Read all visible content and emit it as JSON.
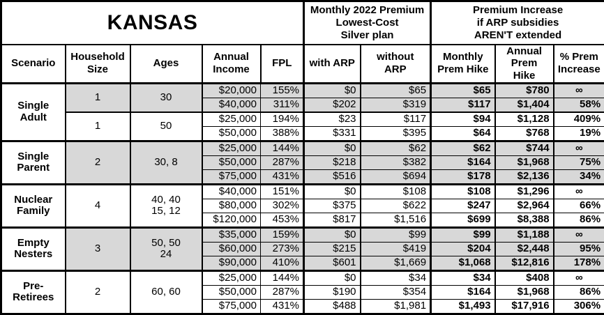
{
  "colors": {
    "shaded_row": "#d8d8d8",
    "border": "#000000",
    "background": "#ffffff"
  },
  "chart_data": {
    "type": "table",
    "title": "KANSAS",
    "column_groups": [
      "Monthly 2022 Premium\nLowest-Cost\nSilver plan",
      "Premium Increase\nif ARP subsidies\nAREN'T extended"
    ],
    "columns": [
      "Scenario",
      "Household\nSize",
      "Ages",
      "Annual\nIncome",
      "FPL",
      "with ARP",
      "without ARP",
      "Monthly\nPrem Hike",
      "Annual\nPrem Hike",
      "% Prem\nIncrease"
    ],
    "groups": [
      {
        "scenario": "Single\nAdult",
        "subgroups": [
          {
            "household_size": "1",
            "ages": "30",
            "shaded": true,
            "rows": [
              [
                "$20,000",
                "155%",
                "$0",
                "$65",
                "$65",
                "$780",
                "∞"
              ],
              [
                "$40,000",
                "311%",
                "$202",
                "$319",
                "$117",
                "$1,404",
                "58%"
              ]
            ]
          },
          {
            "household_size": "1",
            "ages": "50",
            "shaded": false,
            "rows": [
              [
                "$25,000",
                "194%",
                "$23",
                "$117",
                "$94",
                "$1,128",
                "409%"
              ],
              [
                "$50,000",
                "388%",
                "$331",
                "$395",
                "$64",
                "$768",
                "19%"
              ]
            ]
          }
        ]
      },
      {
        "scenario": "Single\nParent",
        "subgroups": [
          {
            "household_size": "2",
            "ages": "30, 8",
            "shaded": true,
            "rows": [
              [
                "$25,000",
                "144%",
                "$0",
                "$62",
                "$62",
                "$744",
                "∞"
              ],
              [
                "$50,000",
                "287%",
                "$218",
                "$382",
                "$164",
                "$1,968",
                "75%"
              ],
              [
                "$75,000",
                "431%",
                "$516",
                "$694",
                "$178",
                "$2,136",
                "34%"
              ]
            ]
          }
        ]
      },
      {
        "scenario": "Nuclear\nFamily",
        "subgroups": [
          {
            "household_size": "4",
            "ages": "40, 40\n15, 12",
            "shaded": false,
            "rows": [
              [
                "$40,000",
                "151%",
                "$0",
                "$108",
                "$108",
                "$1,296",
                "∞"
              ],
              [
                "$80,000",
                "302%",
                "$375",
                "$622",
                "$247",
                "$2,964",
                "66%"
              ],
              [
                "$120,000",
                "453%",
                "$817",
                "$1,516",
                "$699",
                "$8,388",
                "86%"
              ]
            ]
          }
        ]
      },
      {
        "scenario": "Empty\nNesters",
        "subgroups": [
          {
            "household_size": "3",
            "ages": "50, 50\n24",
            "shaded": true,
            "rows": [
              [
                "$35,000",
                "159%",
                "$0",
                "$99",
                "$99",
                "$1,188",
                "∞"
              ],
              [
                "$60,000",
                "273%",
                "$215",
                "$419",
                "$204",
                "$2,448",
                "95%"
              ],
              [
                "$90,000",
                "410%",
                "$601",
                "$1,669",
                "$1,068",
                "$12,816",
                "178%"
              ]
            ]
          }
        ]
      },
      {
        "scenario": "Pre-\nRetirees",
        "subgroups": [
          {
            "household_size": "2",
            "ages": "60, 60",
            "shaded": false,
            "rows": [
              [
                "$25,000",
                "144%",
                "$0",
                "$34",
                "$34",
                "$408",
                "∞"
              ],
              [
                "$50,000",
                "287%",
                "$190",
                "$354",
                "$164",
                "$1,968",
                "86%"
              ],
              [
                "$75,000",
                "431%",
                "$488",
                "$1,981",
                "$1,493",
                "$17,916",
                "306%"
              ]
            ]
          }
        ]
      }
    ],
    "layout": {
      "infinity_symbol": "∞",
      "bold_columns": [
        "Monthly Prem Hike",
        "Annual Prem Hike",
        "% Prem Increase"
      ],
      "shading_note": "alternating gray bands per household subgroup"
    }
  }
}
